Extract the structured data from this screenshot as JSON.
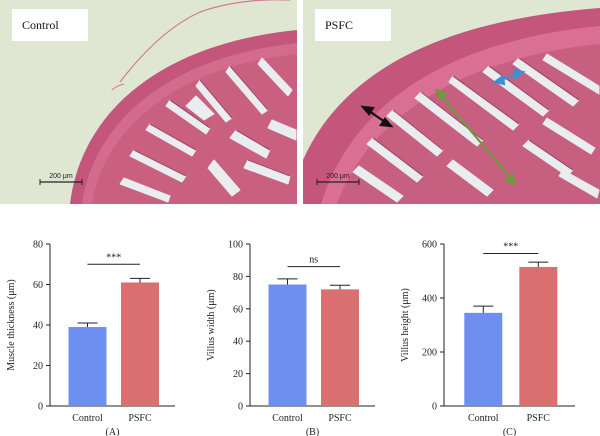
{
  "micrographs": [
    {
      "label": "Control",
      "scale_bar": "200 μm"
    },
    {
      "label": "PSFC",
      "scale_bar": "200 μm"
    }
  ],
  "colors": {
    "tissue": "#c3567a",
    "tissue_light": "#e79ab4",
    "background": "#dfe7d3",
    "control_bar": "#6f8ff0",
    "psfc_bar": "#d96f6f",
    "arrow_black": "#111111",
    "arrow_green": "#6d9a3c",
    "arrow_blue": "#3f8fd2"
  },
  "chart_data": [
    {
      "type": "bar",
      "panel": "(A)",
      "categories": [
        "Control",
        "PSFC"
      ],
      "values": [
        39,
        61
      ],
      "errors": [
        2,
        2
      ],
      "ylabel": "Muscle thickness (μm)",
      "ylim": [
        0,
        80
      ],
      "yticks": [
        0,
        20,
        40,
        60,
        80
      ],
      "significance": "***",
      "significance_y": 70
    },
    {
      "type": "bar",
      "panel": "(B)",
      "categories": [
        "Control",
        "PSFC"
      ],
      "values": [
        75,
        72
      ],
      "errors": [
        3.5,
        2.5
      ],
      "ylabel": "Villus width (μm)",
      "ylim": [
        0,
        100
      ],
      "yticks": [
        0,
        20,
        40,
        60,
        80,
        100
      ],
      "significance": "ns",
      "significance_y": 86
    },
    {
      "type": "bar",
      "panel": "(C)",
      "categories": [
        "Control",
        "PSFC"
      ],
      "values": [
        345,
        515
      ],
      "errors": [
        25,
        18
      ],
      "ylabel": "Villus height (μm)",
      "ylim": [
        0,
        600
      ],
      "yticks": [
        0,
        200,
        400,
        600
      ],
      "significance": "***",
      "significance_y": 565
    }
  ]
}
